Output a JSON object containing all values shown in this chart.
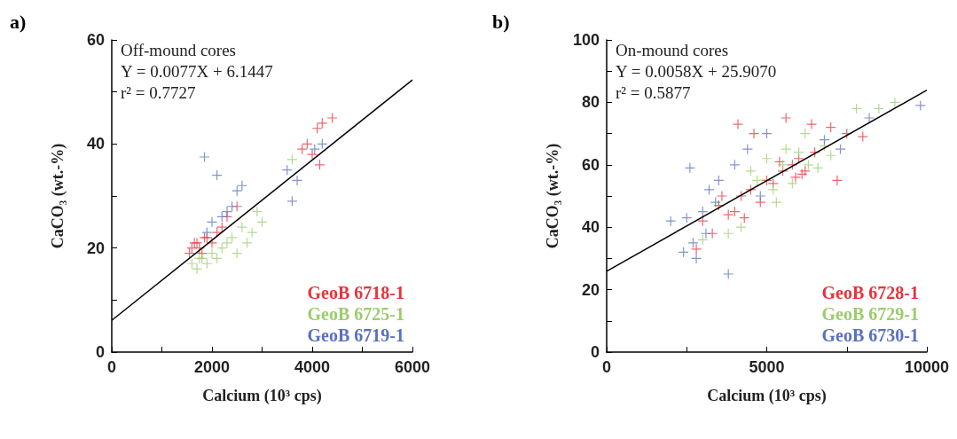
{
  "chart_data": [
    {
      "type": "scatter",
      "title": "a)",
      "xlabel": "Calcium (10³ cps)",
      "ylabel": "CaCO₃ (wt.-%)",
      "annotations": [
        "Off-mound cores",
        "Y = 0.0077X + 6.1447",
        "r² = 0.7727"
      ],
      "xlim": [
        0,
        6000
      ],
      "xticks": [
        0,
        {
          "value": 1000,
          "label": null
        },
        2000,
        {
          "value": 3000,
          "label": null
        },
        4000,
        {
          "value": 5000,
          "label": null
        },
        6000
      ],
      "ylim": [
        0,
        60
      ],
      "yticks": [
        0,
        {
          "value": 10,
          "label": null
        },
        20,
        {
          "value": 30,
          "label": null
        },
        40,
        {
          "value": 50,
          "label": null
        },
        60
      ],
      "grid": false,
      "legend": "bottom right",
      "marker": "cross",
      "series": [
        {
          "name": "GeoB 6718-1",
          "color": "#e8333c",
          "x": [
            1600,
            1700,
            1800,
            1900,
            2000,
            2100,
            1550,
            1750,
            2200,
            2300,
            2500,
            3900,
            4100,
            4200,
            4400,
            4000,
            3800,
            4150,
            1650,
            1850
          ],
          "values": [
            20,
            21,
            19,
            22,
            21,
            23,
            19,
            20,
            24,
            26,
            28,
            40,
            43,
            44,
            45,
            38,
            39,
            36,
            21,
            22
          ]
        },
        {
          "name": "GeoB 6725-1",
          "color": "#9ccc6c",
          "x": [
            1600,
            1700,
            1800,
            1900,
            2000,
            2200,
            2400,
            2600,
            2800,
            3000,
            2700,
            2500,
            2900,
            1750,
            2100,
            3600,
            2300
          ],
          "values": [
            17,
            16,
            18,
            17,
            19,
            20,
            22,
            24,
            23,
            25,
            21,
            19,
            27,
            18,
            18,
            37,
            21
          ]
        },
        {
          "name": "GeoB 6719-1",
          "color": "#5a70c0",
          "x": [
            1850,
            2100,
            2600,
            2300,
            2500,
            3500,
            3700,
            4050,
            3600,
            2000,
            2200,
            2400,
            1900,
            4200
          ],
          "values": [
            37.5,
            34,
            32,
            27,
            31,
            35,
            33,
            39,
            29,
            25,
            26,
            28,
            23,
            40
          ]
        },
        {
          "type": "line",
          "color": "#000000",
          "marker": "none",
          "x": [
            0,
            6000
          ],
          "values": [
            6.1,
            52.3
          ]
        }
      ]
    },
    {
      "type": "scatter",
      "title": "b)",
      "xlabel": "Calcium (10³ cps)",
      "ylabel": "CaCO₃ (wt.-%)",
      "annotations": [
        "On-mound cores",
        "Y = 0.0058X + 25.9070",
        "r² = 0.5877"
      ],
      "xlim": [
        0,
        10000
      ],
      "xticks": [
        0,
        {
          "value": 2500,
          "label": null
        },
        5000,
        {
          "value": 7500,
          "label": null
        },
        10000
      ],
      "ylim": [
        0,
        100
      ],
      "yticks": [
        0,
        {
          "value": 10,
          "label": null
        },
        20,
        {
          "value": 30,
          "label": null
        },
        40,
        {
          "value": 50,
          "label": null
        },
        60,
        {
          "value": 70,
          "label": null
        },
        80,
        {
          "value": 90,
          "label": null
        },
        100
      ],
      "grid": false,
      "legend": "bottom right",
      "marker": "cross",
      "series": [
        {
          "name": "GeoB 6728-1",
          "color": "#e8333c",
          "x": [
            3000,
            3500,
            4000,
            4200,
            4500,
            5000,
            5500,
            5800,
            6000,
            6200,
            5200,
            4800,
            3800,
            4100,
            4600,
            5600,
            6400,
            7000,
            7500,
            8000,
            5900,
            6500,
            3300,
            4300,
            5400,
            6100,
            2800,
            3600,
            7200
          ],
          "values": [
            42,
            47,
            45,
            50,
            52,
            55,
            58,
            60,
            62,
            58,
            54,
            48,
            44,
            73,
            70,
            75,
            73,
            72,
            70,
            69,
            56,
            64,
            38,
            43,
            61,
            57,
            33,
            50,
            55
          ]
        },
        {
          "name": "GeoB 6729-1",
          "color": "#9ccc6c",
          "x": [
            4500,
            5000,
            5500,
            6000,
            6300,
            4700,
            5200,
            5800,
            6600,
            7000,
            4200,
            3800,
            5600,
            6200,
            8500,
            9000,
            7800,
            5300,
            3000,
            6800
          ],
          "values": [
            58,
            62,
            60,
            64,
            60,
            55,
            52,
            54,
            59,
            63,
            40,
            38,
            65,
            70,
            78,
            80,
            78,
            48,
            36,
            66
          ]
        },
        {
          "name": "GeoB 6730-1",
          "color": "#5a70c0",
          "x": [
            2500,
            2700,
            3000,
            3200,
            3500,
            2800,
            3100,
            4000,
            4400,
            5000,
            6800,
            7300,
            2000,
            2600,
            3800,
            9800,
            8200,
            4800,
            2400,
            3400
          ],
          "values": [
            43,
            35,
            45,
            52,
            55,
            30,
            38,
            60,
            65,
            70,
            68,
            65,
            42,
            59,
            25,
            79,
            75,
            50,
            32,
            48
          ]
        },
        {
          "type": "line",
          "color": "#000000",
          "marker": "none",
          "x": [
            0,
            10000
          ],
          "values": [
            25.9,
            83.9
          ]
        }
      ]
    }
  ]
}
